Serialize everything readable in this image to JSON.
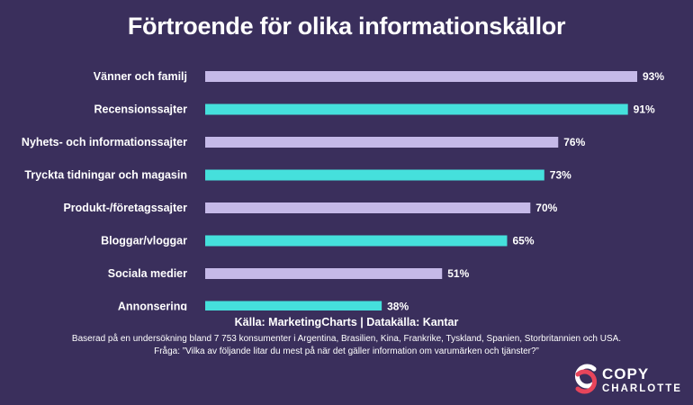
{
  "chart_data": {
    "type": "bar",
    "orientation": "horizontal",
    "title": "Förtroende för olika informationskällor",
    "categories": [
      "Vänner och familj",
      "Recensionssajter",
      "Nyhets- och informationssajter",
      "Tryckta tidningar och magasin",
      "Produkt-/företagssajter",
      "Bloggar/vloggar",
      "Sociala medier",
      "Annonsering"
    ],
    "values": [
      93,
      91,
      76,
      73,
      70,
      65,
      51,
      38
    ],
    "value_labels": [
      "93%",
      "91%",
      "76%",
      "73%",
      "70%",
      "65%",
      "51%",
      "38%"
    ],
    "unit": "%",
    "xlim": [
      0,
      100
    ],
    "bar_colors": [
      "#c5b9e8",
      "#45e0dc"
    ],
    "grid": false,
    "legend": "none"
  },
  "footer": {
    "source": "Källa: MarketingCharts | Datakälla: Kantar",
    "note1": "Baserad på en undersökning bland 7 753 konsumenter i Argentina, Brasilien, Kina, Frankrike, Tyskland, Spanien, Storbritannien och USA.",
    "note2": "Fråga: ”Vilka av följande litar du mest på när det gäller information om varumärken och tjänster?”"
  },
  "logo": {
    "word1": "COPY",
    "word2": "CHARLOTTE",
    "icon": "copy-charlotte-logo-icon",
    "accent_color": "#e8455b"
  },
  "colors": {
    "background": "#3a2f5c",
    "text": "#ffffff"
  }
}
